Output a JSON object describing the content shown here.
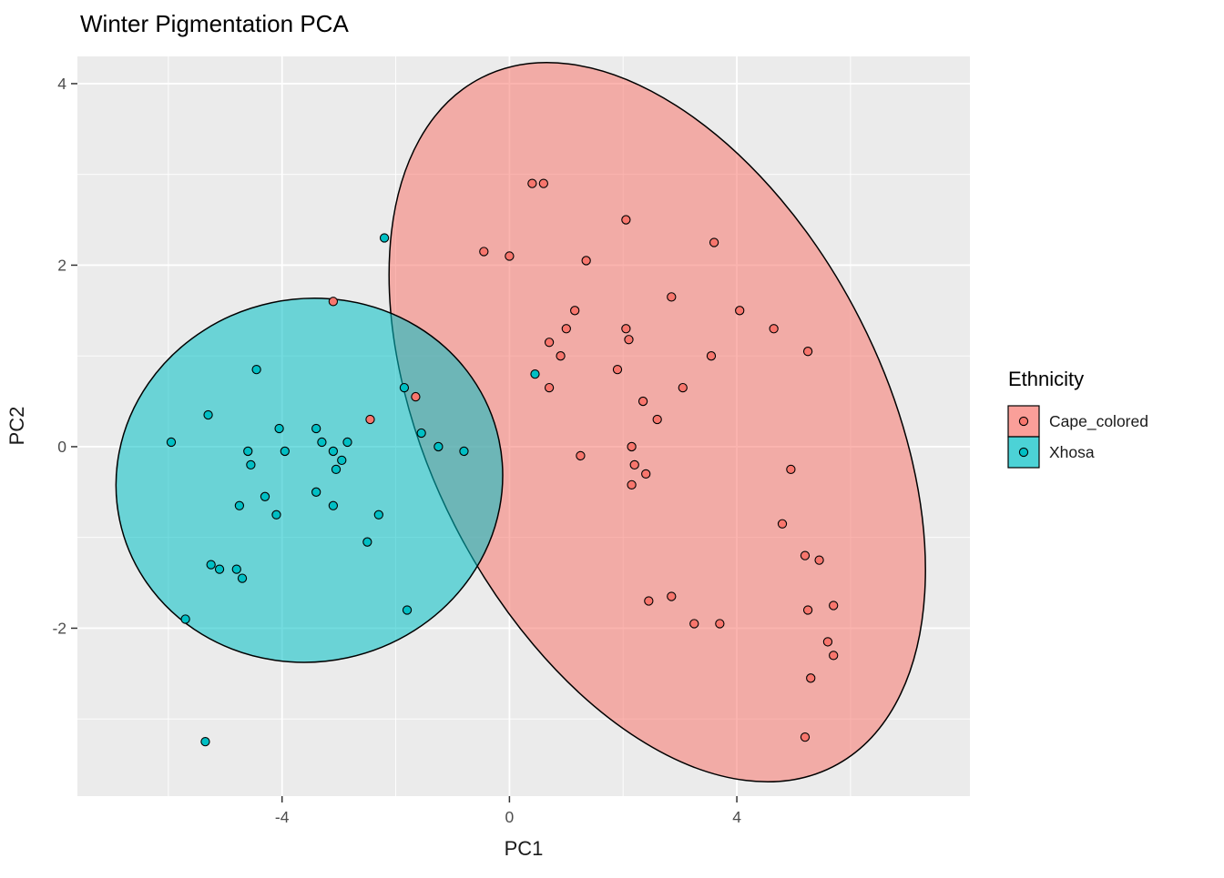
{
  "chart_data": {
    "type": "scatter",
    "title": "Winter Pigmentation PCA",
    "xlabel": "PC1",
    "ylabel": "PC2",
    "xlim": [
      -7.6,
      8.1
    ],
    "ylim": [
      -3.85,
      4.3
    ],
    "x_major_ticks": [
      -4,
      0,
      4
    ],
    "y_major_ticks": [
      -2,
      0,
      2,
      4
    ],
    "x_minor_gridlines": [
      -6,
      -2,
      2,
      6
    ],
    "y_minor_gridlines": [
      -3,
      -1,
      1,
      3
    ],
    "grid": "on",
    "panel_background": "#EBEBEB",
    "gridline_color": "#FFFFFF",
    "legend": {
      "title": "Ethnicity",
      "position": "right"
    },
    "series": [
      {
        "name": "Cape_colored",
        "color": "#F8766D",
        "ellipse": {
          "center": [
            2.6,
            0.27
          ],
          "rx": 4.0,
          "ry": 4.26,
          "angle_deg": -27
        },
        "points": [
          [
            0.4,
            2.9
          ],
          [
            0.6,
            2.9
          ],
          [
            2.05,
            2.5
          ],
          [
            3.6,
            2.25
          ],
          [
            -0.45,
            2.15
          ],
          [
            0.0,
            2.1
          ],
          [
            1.35,
            2.05
          ],
          [
            2.85,
            1.65
          ],
          [
            -3.1,
            1.6
          ],
          [
            1.15,
            1.5
          ],
          [
            4.05,
            1.5
          ],
          [
            4.65,
            1.3
          ],
          [
            1.0,
            1.3
          ],
          [
            2.05,
            1.3
          ],
          [
            2.1,
            1.18
          ],
          [
            0.7,
            1.15
          ],
          [
            0.9,
            1.0
          ],
          [
            5.25,
            1.05
          ],
          [
            3.55,
            1.0
          ],
          [
            1.9,
            0.85
          ],
          [
            0.7,
            0.65
          ],
          [
            3.05,
            0.65
          ],
          [
            2.35,
            0.5
          ],
          [
            -1.65,
            0.55
          ],
          [
            2.6,
            0.3
          ],
          [
            -2.45,
            0.3
          ],
          [
            2.15,
            0.0
          ],
          [
            1.25,
            -0.1
          ],
          [
            2.2,
            -0.2
          ],
          [
            2.4,
            -0.3
          ],
          [
            2.15,
            -0.42
          ],
          [
            4.95,
            -0.25
          ],
          [
            4.8,
            -0.85
          ],
          [
            5.2,
            -1.2
          ],
          [
            5.45,
            -1.25
          ],
          [
            2.45,
            -1.7
          ],
          [
            2.85,
            -1.65
          ],
          [
            3.25,
            -1.95
          ],
          [
            3.7,
            -1.95
          ],
          [
            5.25,
            -1.8
          ],
          [
            5.7,
            -1.75
          ],
          [
            5.6,
            -2.15
          ],
          [
            5.7,
            -2.3
          ],
          [
            5.3,
            -2.55
          ],
          [
            5.2,
            -3.2
          ]
        ]
      },
      {
        "name": "Xhosa",
        "color": "#00BFC4",
        "ellipse": {
          "center": [
            -3.52,
            -0.37
          ],
          "rx": 3.41,
          "ry": 2.0,
          "angle_deg": -12
        },
        "points": [
          [
            -2.2,
            2.3
          ],
          [
            -4.45,
            0.85
          ],
          [
            -1.85,
            0.65
          ],
          [
            -5.3,
            0.35
          ],
          [
            -5.95,
            0.05
          ],
          [
            -4.6,
            -0.05
          ],
          [
            -4.55,
            -0.2
          ],
          [
            -4.05,
            0.2
          ],
          [
            -3.95,
            -0.05
          ],
          [
            -3.4,
            0.2
          ],
          [
            -3.3,
            0.05
          ],
          [
            -3.1,
            -0.05
          ],
          [
            -3.05,
            -0.25
          ],
          [
            -2.95,
            -0.15
          ],
          [
            -2.85,
            0.05
          ],
          [
            -4.75,
            -0.65
          ],
          [
            -4.3,
            -0.55
          ],
          [
            -4.1,
            -0.75
          ],
          [
            -3.4,
            -0.5
          ],
          [
            -3.1,
            -0.65
          ],
          [
            -2.5,
            -1.05
          ],
          [
            -2.3,
            -0.75
          ],
          [
            -5.25,
            -1.3
          ],
          [
            -5.1,
            -1.35
          ],
          [
            -4.8,
            -1.35
          ],
          [
            -4.7,
            -1.45
          ],
          [
            -5.7,
            -1.9
          ],
          [
            -1.8,
            -1.8
          ],
          [
            -5.35,
            -3.25
          ],
          [
            -1.55,
            0.15
          ],
          [
            -1.25,
            0.0
          ],
          [
            -0.8,
            -0.05
          ],
          [
            0.45,
            0.8
          ]
        ]
      }
    ]
  }
}
